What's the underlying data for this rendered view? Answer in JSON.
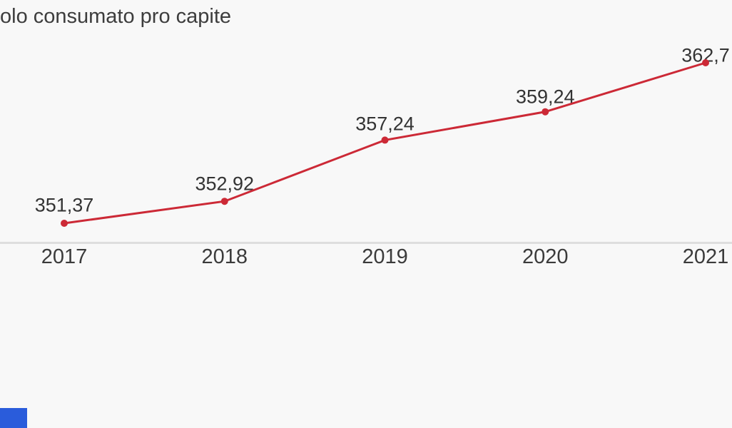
{
  "chart_data": {
    "type": "line",
    "title": "olo consumato pro capite",
    "x": [
      2017,
      2018,
      2019,
      2020,
      2021
    ],
    "x_tick_labels": [
      "2017",
      "2018",
      "2019",
      "2020",
      "2021"
    ],
    "values": [
      351.37,
      352.92,
      357.24,
      359.24,
      362.7
    ],
    "point_labels": [
      "351,37",
      "352,92",
      "357,24",
      "359,24",
      "362,7"
    ],
    "xlabel": "",
    "ylabel": "",
    "grid": false,
    "legend_position": "none",
    "decimal_separator": ","
  },
  "colors": {
    "background": "#f8f8f8",
    "line": "#cc2936",
    "point": "#cc2936",
    "axis_line": "#dedede",
    "tick_text": "#3b3b3b",
    "label_text": "#333333",
    "title_text": "#3d3d3d",
    "corner_badge": "#2a5cdb"
  }
}
